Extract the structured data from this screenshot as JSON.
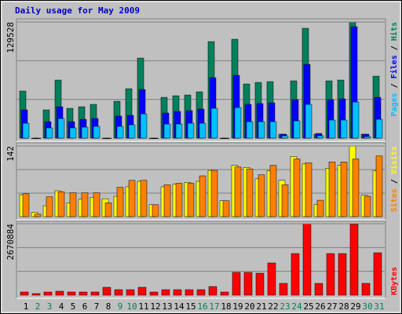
{
  "chart_data": [
    {
      "type": "bar",
      "title": "Daily usage for May 2009",
      "separator": "/",
      "ylim": [
        0,
        129528
      ],
      "yticks": [
        129528
      ],
      "series": [
        {
          "name": "Hits",
          "color": "#00805c",
          "values": [
            52500,
            0,
            31500,
            64750,
            33250,
            35000,
            37625,
            0,
            41125,
            55125,
            89250,
            0,
            45500,
            47250,
            48125,
            51625,
            107625,
            0,
            110250,
            60375,
            62125,
            63000,
            4375,
            63875,
            122500,
            4375,
            63875,
            64750,
            129528,
            4375,
            69125
          ]
        },
        {
          "name": "Files",
          "color": "#0000ff",
          "values": [
            31500,
            0,
            18375,
            35000,
            18375,
            21000,
            21875,
            0,
            24500,
            25375,
            54250,
            0,
            28000,
            29750,
            30625,
            32375,
            67375,
            0,
            70000,
            37625,
            38500,
            39375,
            4375,
            42875,
            82250,
            5250,
            42875,
            43750,
            124250,
            4375,
            45500
          ]
        },
        {
          "name": "Pages",
          "color": "#00c0ff",
          "values": [
            16625,
            0,
            11375,
            21875,
            11375,
            12250,
            13125,
            0,
            13125,
            14875,
            27125,
            0,
            15750,
            15750,
            16625,
            16625,
            33250,
            0,
            34125,
            18375,
            18375,
            18375,
            2625,
            19250,
            37625,
            2625,
            20125,
            20125,
            40250,
            1750,
            21000
          ]
        }
      ]
    },
    {
      "type": "bar",
      "separator": "/",
      "ylim": [
        0,
        142
      ],
      "yticks": [
        142
      ],
      "series": [
        {
          "name": "Visits",
          "color": "#ffff00",
          "values": [
            44,
            9,
            22,
            52,
            28,
            35,
            39,
            36,
            41,
            60,
            71,
            24,
            60,
            65,
            69,
            71,
            93,
            32,
            103,
            99,
            76,
            92,
            73,
            121,
            106,
            24,
            97,
            103,
            142,
            43,
            92
          ]
        },
        {
          "name": "Sites",
          "color": "#ff8000",
          "values": [
            46,
            5,
            40,
            50,
            48,
            48,
            48,
            28,
            59,
            73,
            73,
            24,
            64,
            67,
            67,
            82,
            93,
            32,
            100,
            96,
            84,
            103,
            64,
            116,
            108,
            33,
            110,
            110,
            116,
            41,
            122
          ]
        }
      ]
    },
    {
      "type": "bar",
      "ylim": [
        0,
        2670884
      ],
      "yticks": [
        2670884
      ],
      "categories": [
        "1",
        "2",
        "3",
        "4",
        "5",
        "6",
        "7",
        "8",
        "9",
        "10",
        "11",
        "12",
        "13",
        "14",
        "15",
        "16",
        "17",
        "18",
        "19",
        "20",
        "21",
        "22",
        "23",
        "24",
        "25",
        "26",
        "27",
        "28",
        "29",
        "30",
        "31"
      ],
      "category_color": "#000000",
      "highlight_color": "#00805c",
      "highlight_categories": [
        "2",
        "3",
        "9",
        "10",
        "16",
        "17",
        "23",
        "24",
        "30",
        "31"
      ],
      "series": [
        {
          "name": "KBytes",
          "color": "#ff0000",
          "values": [
            117400,
            58700,
            117400,
            146750,
            117400,
            117400,
            117400,
            293500,
            205450,
            205450,
            293500,
            117400,
            205450,
            205450,
            205450,
            205450,
            322850,
            117400,
            851150,
            851150,
            821800,
            1203350,
            440250,
            1555550,
            2670884,
            440250,
            1555550,
            1555550,
            2650000,
            440250,
            1584900
          ]
        }
      ]
    }
  ]
}
